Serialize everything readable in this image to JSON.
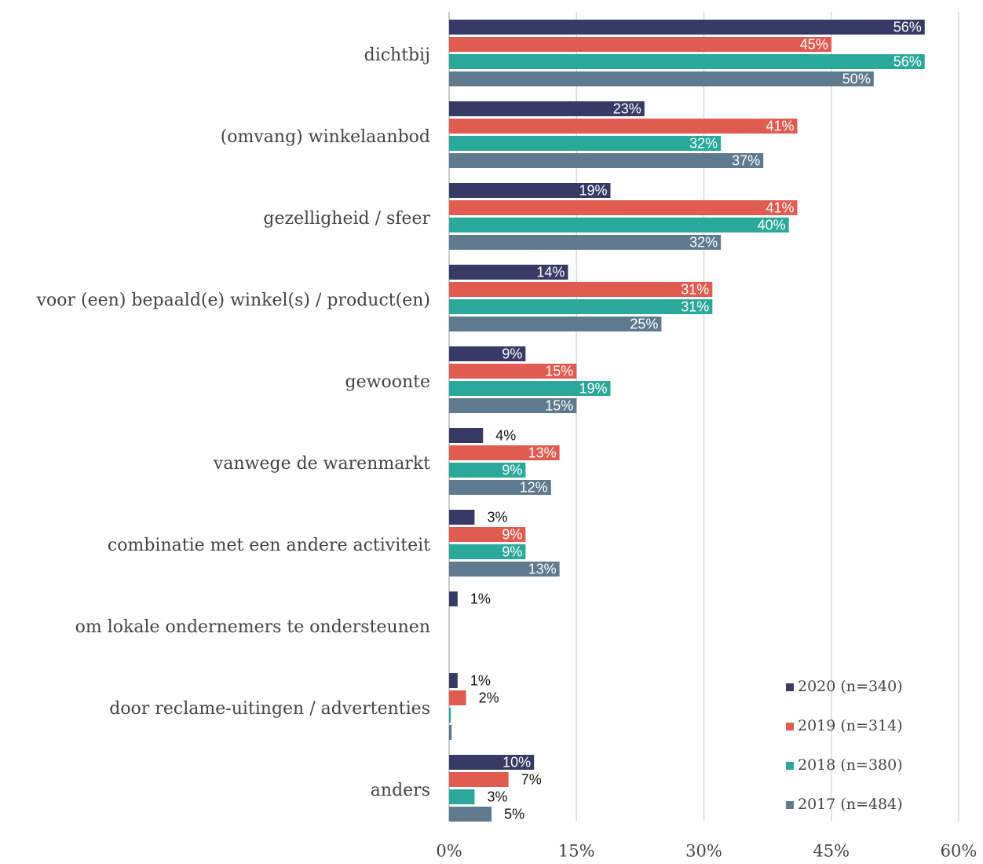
{
  "chart_data": {
    "type": "barh",
    "categories": [
      "dichtbij",
      "(omvang) winkelaanbod",
      "gezelligheid / sfeer",
      "voor (een) bepaald(e) winkel(s) / product(en)",
      "gewoonte",
      "vanwege de warenmarkt",
      "combinatie met een andere activiteit",
      "om lokale ondernemers te ondersteunen",
      "door reclame-uitingen / advertenties",
      "anders"
    ],
    "series": [
      {
        "name": "2020 (n=340)",
        "color": "#383a66",
        "values": [
          56,
          23,
          19,
          14,
          9,
          4,
          3,
          1,
          1,
          10
        ],
        "value_labels": [
          "56%",
          "23%",
          "19%",
          "14%",
          "9%",
          "4%",
          "3%",
          "1%",
          "1%",
          "10%"
        ]
      },
      {
        "name": "2019 (n=314)",
        "color": "#e05c50",
        "values": [
          45,
          41,
          41,
          31,
          15,
          13,
          9,
          null,
          2,
          7
        ],
        "value_labels": [
          "45%",
          "41%",
          "41%",
          "31%",
          "15%",
          "13%",
          "9%",
          null,
          "2%",
          "7%"
        ]
      },
      {
        "name": "2018 (n=380)",
        "color": "#2aa89a",
        "values": [
          56,
          32,
          40,
          31,
          19,
          9,
          9,
          null,
          0.2,
          3
        ],
        "value_labels": [
          "56%",
          "32%",
          "40%",
          "31%",
          "19%",
          "9%",
          "9%",
          null,
          null,
          "3%"
        ]
      },
      {
        "name": "2017 (n=484)",
        "color": "#5f7a8e",
        "values": [
          50,
          37,
          32,
          25,
          15,
          12,
          13,
          null,
          0.3,
          5
        ],
        "value_labels": [
          "50%",
          "37%",
          "32%",
          "25%",
          "15%",
          "12%",
          "13%",
          null,
          null,
          "5%"
        ]
      }
    ],
    "xlim": [
      0,
      60
    ],
    "xticks": [
      {
        "value": 0,
        "label": "0%"
      },
      {
        "value": 15,
        "label": "15%"
      },
      {
        "value": 30,
        "label": "30%"
      },
      {
        "value": 45,
        "label": "45%"
      },
      {
        "value": 60,
        "label": "60%"
      }
    ],
    "grid": true,
    "legend": "lower right"
  }
}
